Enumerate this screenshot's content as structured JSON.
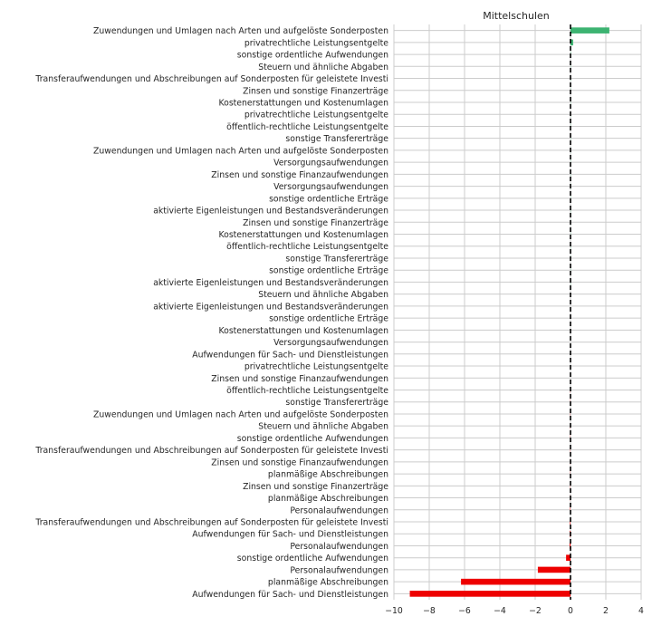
{
  "chart_data": {
    "type": "bar",
    "orientation": "horizontal",
    "title": "Mittelschulen",
    "xlabel": "",
    "ylabel": "",
    "xlim": [
      -10,
      4
    ],
    "x_ticks": [
      -10,
      -8,
      -6,
      -4,
      -2,
      0,
      2,
      4
    ],
    "x_tick_labels": [
      "−10",
      "−8",
      "−6",
      "−4",
      "−2",
      "0",
      "2",
      "4"
    ],
    "grid": true,
    "reference_line": 0,
    "colors": {
      "positive": "#3cb371",
      "negative": "#ee0000",
      "grid": "#cccccc",
      "reference": "#000000"
    },
    "categories": [
      "Zuwendungen und Umlagen nach Arten und aufgelöste Sonderposten",
      "privatrechtliche Leistungsentgelte",
      "sonstige ordentliche Aufwendungen",
      "Steuern und ähnliche Abgaben",
      "Transferaufwendungen und Abschreibungen auf Sonderposten für geleistete Investi",
      "Zinsen und sonstige Finanzerträge",
      "Kostenerstattungen und Kostenumlagen",
      "privatrechtliche Leistungsentgelte",
      "öffentlich-rechtliche Leistungsentgelte",
      "sonstige Transfererträge",
      "Zuwendungen und Umlagen nach Arten und aufgelöste Sonderposten",
      "Versorgungsaufwendungen",
      "Zinsen und sonstige Finanzaufwendungen",
      "Versorgungsaufwendungen",
      "sonstige ordentliche Erträge",
      "aktivierte Eigenleistungen und Bestandsveränderungen",
      "Zinsen und sonstige Finanzerträge",
      "Kostenerstattungen und Kostenumlagen",
      "öffentlich-rechtliche Leistungsentgelte",
      "sonstige Transfererträge",
      "sonstige ordentliche Erträge",
      "aktivierte Eigenleistungen und Bestandsveränderungen",
      "Steuern und ähnliche Abgaben",
      "aktivierte Eigenleistungen und Bestandsveränderungen",
      "sonstige ordentliche Erträge",
      "Kostenerstattungen und Kostenumlagen",
      "Versorgungsaufwendungen",
      "Aufwendungen für Sach- und Dienstleistungen",
      "privatrechtliche Leistungsentgelte",
      "Zinsen und sonstige Finanzaufwendungen",
      "öffentlich-rechtliche Leistungsentgelte",
      "sonstige Transfererträge",
      "Zuwendungen und Umlagen nach Arten und aufgelöste Sonderposten",
      "Steuern und ähnliche Abgaben",
      "sonstige ordentliche Aufwendungen",
      "Transferaufwendungen und Abschreibungen auf Sonderposten für geleistete Investi",
      "Zinsen und sonstige Finanzaufwendungen",
      "planmäßige Abschreibungen",
      "Zinsen und sonstige Finanzerträge",
      "planmäßige Abschreibungen",
      "Personalaufwendungen",
      "Transferaufwendungen und Abschreibungen auf Sonderposten für geleistete Investi",
      "Aufwendungen für Sach- und Dienstleistungen",
      "Personalaufwendungen",
      "sonstige ordentliche Aufwendungen",
      "Personalaufwendungen",
      "planmäßige Abschreibungen",
      "Aufwendungen für Sach- und Dienstleistungen"
    ],
    "values": [
      2.2,
      0.15,
      0.02,
      0.01,
      0.01,
      0.01,
      0.01,
      0.01,
      0.01,
      0.01,
      0.01,
      0.01,
      0.01,
      0.01,
      0.01,
      0.01,
      0.01,
      0.01,
      0.01,
      0.01,
      0.01,
      0.01,
      0.0,
      0.0,
      0.0,
      0.0,
      0.0,
      0.0,
      0.0,
      0.0,
      -0.01,
      -0.01,
      -0.01,
      -0.01,
      -0.01,
      -0.01,
      -0.01,
      -0.01,
      -0.01,
      -0.01,
      -0.02,
      -0.03,
      -0.04,
      -0.05,
      -0.25,
      -1.85,
      -6.2,
      -9.1
    ]
  }
}
